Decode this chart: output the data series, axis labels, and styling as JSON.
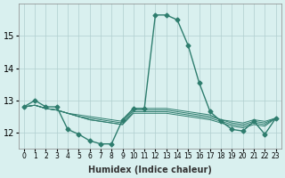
{
  "x": [
    0,
    1,
    2,
    3,
    4,
    5,
    6,
    7,
    8,
    9,
    10,
    11,
    12,
    13,
    14,
    15,
    16,
    17,
    18,
    19,
    20,
    21,
    22,
    23
  ],
  "lines": [
    [
      12.8,
      13.0,
      12.8,
      12.8,
      12.1,
      11.95,
      11.75,
      11.65,
      11.65,
      12.4,
      12.75,
      12.75,
      15.65,
      15.65,
      15.5,
      14.7,
      13.55,
      12.65,
      12.35,
      12.1,
      12.05,
      12.35,
      11.95,
      12.45
    ],
    [
      12.8,
      12.85,
      12.75,
      12.7,
      12.6,
      12.55,
      12.5,
      12.45,
      12.4,
      12.35,
      12.75,
      12.75,
      12.75,
      12.75,
      12.7,
      12.65,
      12.6,
      12.55,
      12.4,
      12.35,
      12.3,
      12.4,
      12.35,
      12.45
    ],
    [
      12.8,
      12.85,
      12.75,
      12.7,
      12.6,
      12.5,
      12.45,
      12.4,
      12.35,
      12.3,
      12.7,
      12.7,
      12.7,
      12.7,
      12.65,
      12.6,
      12.55,
      12.5,
      12.4,
      12.3,
      12.25,
      12.35,
      12.3,
      12.45
    ],
    [
      12.8,
      12.85,
      12.75,
      12.7,
      12.6,
      12.5,
      12.4,
      12.35,
      12.3,
      12.25,
      12.65,
      12.65,
      12.65,
      12.65,
      12.6,
      12.55,
      12.5,
      12.45,
      12.35,
      12.25,
      12.2,
      12.3,
      12.25,
      12.45
    ],
    [
      12.8,
      12.85,
      12.75,
      12.7,
      12.6,
      12.5,
      12.4,
      12.35,
      12.3,
      12.25,
      12.6,
      12.6,
      12.6,
      12.6,
      12.55,
      12.5,
      12.45,
      12.4,
      12.3,
      12.2,
      12.15,
      12.25,
      12.2,
      12.45
    ]
  ],
  "main_line_idx": 0,
  "ylim": [
    11.5,
    16.0
  ],
  "xlim": [
    -0.5,
    23.5
  ],
  "yticks": [
    12,
    13,
    14,
    15
  ],
  "xticks": [
    0,
    1,
    2,
    3,
    4,
    5,
    6,
    7,
    8,
    9,
    10,
    11,
    12,
    13,
    14,
    15,
    16,
    17,
    18,
    19,
    20,
    21,
    22,
    23
  ],
  "xlabel": "Humidex (Indice chaleur)",
  "line_color": "#2e7d6e",
  "bg_color": "#d9f0ef",
  "grid_color": "#b0cece",
  "marker": "D",
  "marker_size": 2.5,
  "linewidth": 1.0
}
